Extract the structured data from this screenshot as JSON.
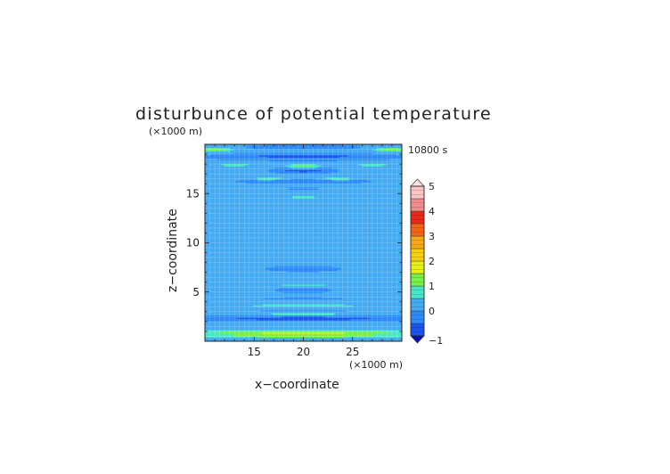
{
  "chart_data": {
    "type": "heatmap",
    "title": "disturbunce of potential temperature",
    "time_label": "10800 s",
    "xlabel": "x−coordinate",
    "ylabel": "z−coordinate",
    "x_unit": "(×1000 m)",
    "y_unit": "(×1000 m)",
    "xlim": [
      10,
      30
    ],
    "ylim": [
      0,
      20
    ],
    "x_ticks": [
      "15",
      "20",
      "25"
    ],
    "x_tick_values": [
      15,
      20,
      25
    ],
    "y_ticks": [
      "5",
      "10",
      "15"
    ],
    "y_tick_values": [
      5,
      10,
      15
    ],
    "grid": true,
    "colorbar": {
      "levels": [
        -1,
        -0.5,
        0,
        0.5,
        1,
        1.5,
        2,
        2.5,
        3,
        3.5,
        4,
        4.5,
        5
      ],
      "colors": [
        "#0a1fd6",
        "#1a55ee",
        "#2d8af8",
        "#44aaf2",
        "#48e6c8",
        "#78f048",
        "#e8f018",
        "#f6d010",
        "#f6a818",
        "#f46418",
        "#e82818",
        "#f08c8c",
        "#f8c4c4"
      ],
      "tick_labels": [
        "5",
        "4",
        "3",
        "2",
        "1",
        "0",
        "−1"
      ],
      "tick_values": [
        5,
        4,
        3,
        2,
        1,
        0,
        -1
      ],
      "extend": "both"
    },
    "field": {
      "background_value": 0.2,
      "features": [
        {
          "z": 0.85,
          "width": 0.22,
          "value": 1.25,
          "xcenter": 20,
          "xhalf": 10
        },
        {
          "z": 0.5,
          "width": 0.15,
          "value": 0.9,
          "xcenter": 20,
          "xhalf": 10
        },
        {
          "z": 2.3,
          "width": 0.25,
          "value": -0.8,
          "xcenter": 20,
          "xhalf": 10
        },
        {
          "z": 2.75,
          "width": 0.12,
          "value": 1.15,
          "xcenter": 20,
          "xhalf": 3.6
        },
        {
          "z": 3.05,
          "width": 0.12,
          "value": -0.5,
          "xcenter": 20,
          "xhalf": 4
        },
        {
          "z": 3.6,
          "width": 0.15,
          "value": 0.65,
          "xcenter": 20,
          "xhalf": 6
        },
        {
          "z": 5.15,
          "width": 0.25,
          "value": -0.8,
          "xcenter": 20,
          "xhalf": 3
        },
        {
          "z": 5.7,
          "width": 0.12,
          "value": 0.65,
          "xcenter": 20,
          "xhalf": 2.5
        },
        {
          "z": 4.4,
          "width": 0.4,
          "value": -0.3,
          "xcenter": 20,
          "xhalf": 10
        },
        {
          "z": 7.4,
          "width": 0.5,
          "value": -0.3,
          "xcenter": 20,
          "xhalf": 6
        },
        {
          "z": 12.5,
          "width": 0.7,
          "value": -0.25,
          "xcenter": 20,
          "xhalf": 5
        },
        {
          "z": 14.6,
          "width": 0.18,
          "value": 0.85,
          "xcenter": 20,
          "xhalf": 1.2
        },
        {
          "z": 15.5,
          "width": 0.3,
          "value": -0.45,
          "xcenter": 20,
          "xhalf": 2.5
        },
        {
          "z": 16.2,
          "width": 0.25,
          "value": -0.6,
          "xcenter": 20,
          "xhalf": 7
        },
        {
          "z": 16.5,
          "width": 0.18,
          "value": 0.7,
          "xcenter": 16.5,
          "xhalf": 1.6
        },
        {
          "z": 16.5,
          "width": 0.18,
          "value": 0.7,
          "xcenter": 23.5,
          "xhalf": 1.6
        },
        {
          "z": 17.3,
          "width": 0.25,
          "value": -0.8,
          "xcenter": 20,
          "xhalf": 3
        },
        {
          "z": 17.8,
          "width": 0.18,
          "value": 1.1,
          "xcenter": 20,
          "xhalf": 1.8
        },
        {
          "z": 17.9,
          "width": 0.15,
          "value": 0.8,
          "xcenter": 13,
          "xhalf": 1.6
        },
        {
          "z": 17.9,
          "width": 0.15,
          "value": 0.8,
          "xcenter": 27,
          "xhalf": 1.6
        },
        {
          "z": 18.8,
          "width": 0.35,
          "value": -0.85,
          "xcenter": 20,
          "xhalf": 10
        },
        {
          "z": 19.45,
          "width": 0.18,
          "value": 1.05,
          "xcenter": 11,
          "xhalf": 1.6
        },
        {
          "z": 19.45,
          "width": 0.18,
          "value": 1.05,
          "xcenter": 29,
          "xhalf": 1.6
        },
        {
          "z": 19.7,
          "width": 0.25,
          "value": -0.8,
          "xcenter": 20,
          "xhalf": 6
        }
      ]
    }
  }
}
